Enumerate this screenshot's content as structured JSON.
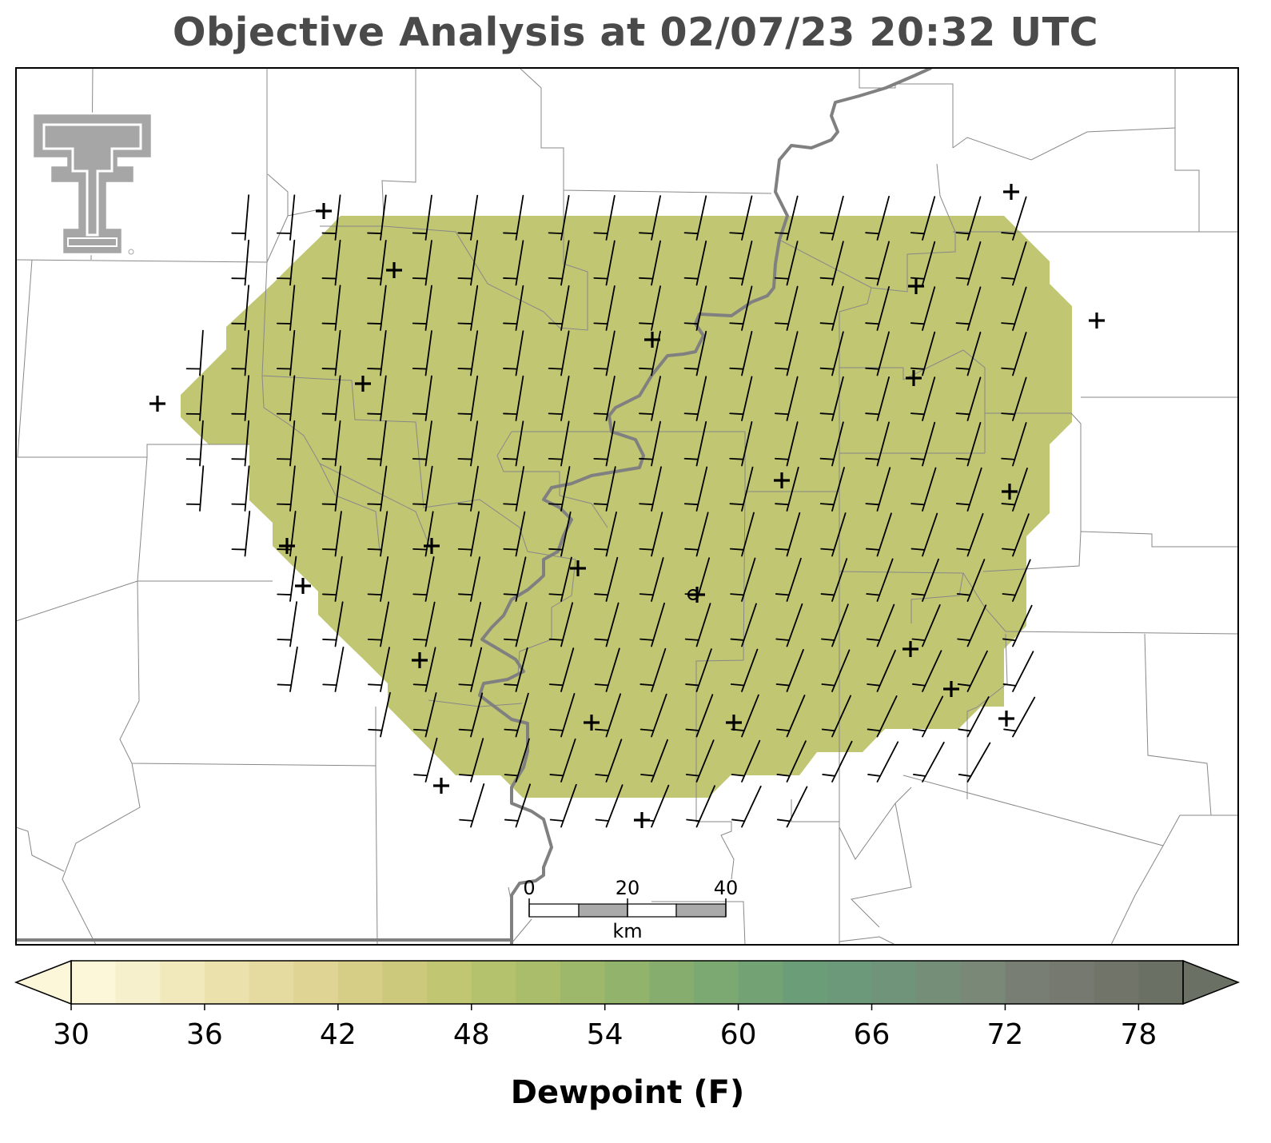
{
  "title": "Objective Analysis at 02/07/23 20:32 UTC",
  "colorbar": {
    "label": "Dewpoint (F)",
    "min": 30,
    "max": 80,
    "step": 2,
    "ticks": [
      "30",
      "36",
      "42",
      "48",
      "54",
      "60",
      "66",
      "72",
      "78"
    ],
    "colors": [
      "#fbf7d8",
      "#f6f1cc",
      "#f1e9bc",
      "#ebe1ad",
      "#e5da9f",
      "#dfd494",
      "#d6cd86",
      "#ccc97c",
      "#c1c673",
      "#b5c26d",
      "#a9bd6b",
      "#9db86a",
      "#91b36c",
      "#86ad6e",
      "#7ca872",
      "#73a375",
      "#6b9e78",
      "#6b997a",
      "#6f9479",
      "#758e78",
      "#7a8878",
      "#797e74",
      "#757970",
      "#717569",
      "#6b7064"
    ]
  },
  "analysis": {
    "field": "dewpoint",
    "fill_color": "#c1c673",
    "value_f": 48
  },
  "logo": {
    "name": "Texas Tech Double T",
    "color": "#a6a6a6"
  },
  "scale_bar": {
    "unit": "km",
    "labels": [
      "0",
      "20",
      "40"
    ]
  },
  "wind": {
    "barb_color": "#000000"
  }
}
